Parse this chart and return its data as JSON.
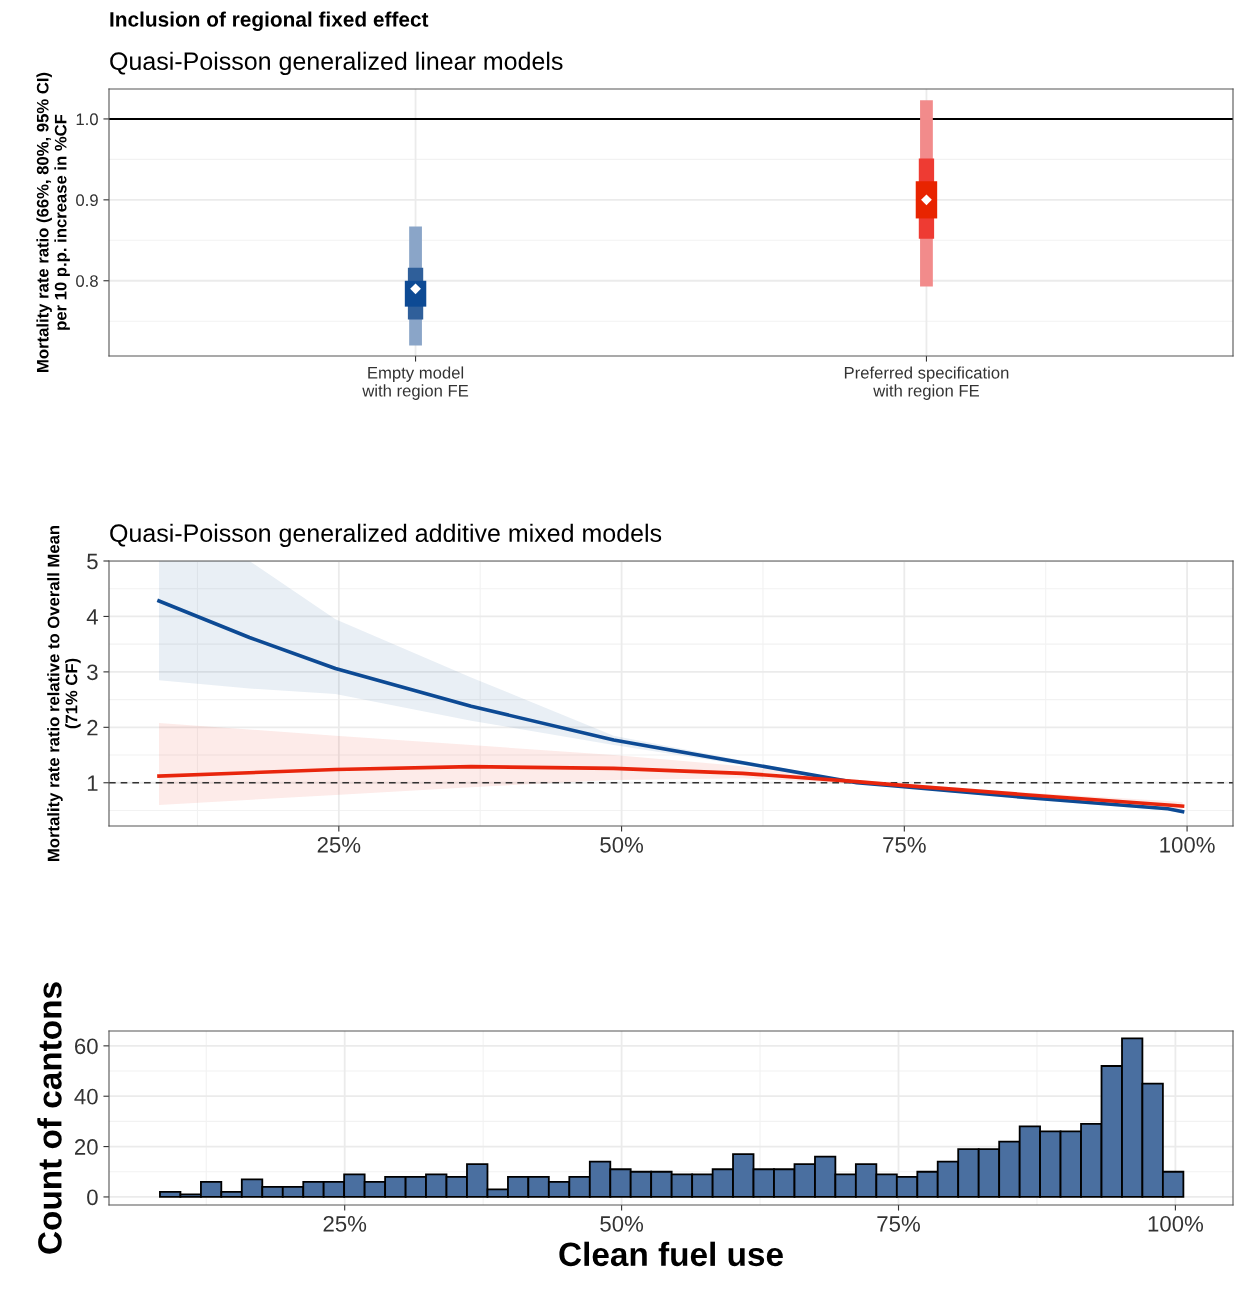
{
  "chart_data": [
    {
      "type": "bar",
      "title": "Inclusion of regional fixed effect",
      "subtitle": "Quasi-Poisson generalized linear models",
      "ylabel": "Mortality rate ratio (66%, 80%, 95% CI)\nper 10 p.p. increase in %CF",
      "categories": [
        "Empty model\nwith region FE",
        "Preferred specification\nwith region FE"
      ],
      "ylim": [
        0.707,
        1.037
      ],
      "yticks": [
        {
          "value": 0.8,
          "label": "0.8"
        },
        {
          "value": 0.9,
          "label": "0.9"
        },
        {
          "value": 1.0,
          "label": "1.0"
        }
      ],
      "grid": true,
      "series": [
        {
          "colors": [
            "#8aa5c8",
            "#f28b8b"
          ],
          "base": [
            0.72,
            0.793
          ],
          "values": [
            0.147,
            0.23
          ]
        },
        {
          "colors": [
            "#2f5f9a",
            "#ee3b33"
          ],
          "base": [
            0.752,
            0.852
          ],
          "values": [
            0.064,
            0.099
          ]
        },
        {
          "colors": [
            "#0d4a94",
            "#e82400"
          ],
          "base": [
            0.768,
            0.877
          ],
          "values": [
            0.032,
            0.046
          ]
        },
        {
          "type": "scatter",
          "color": "#ffffff",
          "marker": "diamond",
          "values": [
            0.79,
            0.9
          ]
        }
      ],
      "ref_lines": [
        {
          "axis": "y",
          "value": 1.0,
          "color": "#000000",
          "line_style": "solid"
        }
      ]
    },
    {
      "type": "line",
      "subtitle": "Quasi-Poisson generalized additive mixed models",
      "ylabel": "Mortality rate ratio relative to Overall Mean\n(71% CF)",
      "xlim": [
        4.68,
        104.06
      ],
      "xticks": [
        {
          "value": 25,
          "label": "25%"
        },
        {
          "value": 50,
          "label": "50%"
        },
        {
          "value": 75,
          "label": "75%"
        },
        {
          "value": 100,
          "label": "100%"
        }
      ],
      "ylim": [
        0.22,
        5.0
      ],
      "yticks": [
        1,
        2,
        3,
        4,
        5
      ],
      "grid": true,
      "series": [
        {
          "color": "#0d4a94",
          "x": [
            9.1,
            17.1,
            24.7,
            36.7,
            49.3,
            60.7,
            70.8,
            73.7,
            86.0,
            98.3,
            99.6
          ],
          "values": [
            4.28,
            3.62,
            3.06,
            2.38,
            1.77,
            1.36,
            1.0,
            0.95,
            0.73,
            0.53,
            0.48
          ],
          "lower": [
            2.85,
            2.7,
            2.6,
            2.12,
            1.68,
            1.32,
            0.98,
            0.93,
            0.7,
            0.5,
            0.45
          ],
          "upper": [
            5.0,
            5.0,
            3.95,
            2.9,
            1.85,
            1.4,
            1.02,
            0.97,
            0.75,
            0.55,
            0.5
          ]
        },
        {
          "color": "#e8250c",
          "x": [
            9.1,
            24.7,
            36.7,
            49.3,
            60.7,
            70.8,
            73.7,
            86.0,
            98.3,
            99.6
          ],
          "values": [
            1.12,
            1.24,
            1.29,
            1.26,
            1.17,
            1.02,
            0.97,
            0.78,
            0.6,
            0.58
          ],
          "lower": [
            0.6,
            0.78,
            0.92,
            1.05,
            1.08,
            0.99,
            0.95,
            0.74,
            0.52,
            0.5
          ],
          "upper": [
            2.08,
            1.85,
            1.68,
            1.5,
            1.3,
            1.05,
            1.0,
            0.82,
            0.67,
            0.65
          ]
        }
      ],
      "ref_lines": [
        {
          "axis": "y",
          "value": 1,
          "color": "#333333",
          "line_style": "dashed"
        }
      ]
    },
    {
      "type": "histogram",
      "xlabel": "Clean fuel use",
      "ylabel": "Count of cantons",
      "xlim": [
        3.72,
        105.2
      ],
      "xticks": [
        {
          "value": 25,
          "label": "25%"
        },
        {
          "value": 50,
          "label": "50%"
        },
        {
          "value": 75,
          "label": "75%"
        },
        {
          "value": 100,
          "label": "100%"
        }
      ],
      "ylim": [
        -3.2,
        65.9
      ],
      "yticks": [
        0,
        20,
        40,
        60
      ],
      "grid": true,
      "color": "#4a6fa0",
      "bins": [
        8.32,
        10.17,
        12.02,
        13.86,
        15.71,
        17.56,
        19.41,
        21.26,
        23.1,
        24.95,
        26.8,
        28.65,
        30.5,
        32.34,
        34.19,
        36.04,
        37.89,
        39.74,
        41.58,
        43.43,
        45.28,
        47.13,
        48.98,
        50.82,
        52.67,
        54.52,
        56.37,
        58.22,
        60.06,
        61.91,
        63.76,
        65.61,
        67.46,
        69.3,
        71.15,
        73.0,
        74.85,
        76.7,
        78.54,
        80.39,
        82.24,
        84.09,
        85.94,
        87.78,
        89.63,
        91.48,
        93.33,
        95.18,
        97.02,
        98.87,
        100.72
      ],
      "values": [
        2,
        1,
        6,
        2,
        7,
        4,
        4,
        6,
        6,
        9,
        6,
        8,
        8,
        9,
        8,
        13,
        3,
        8,
        8,
        6,
        8,
        14,
        11,
        10,
        10,
        9,
        9,
        11,
        17,
        11,
        11,
        13,
        16,
        9,
        13,
        9,
        8,
        10,
        14,
        19,
        19,
        22,
        28,
        26,
        26,
        29,
        52,
        63,
        45,
        10
      ]
    }
  ]
}
